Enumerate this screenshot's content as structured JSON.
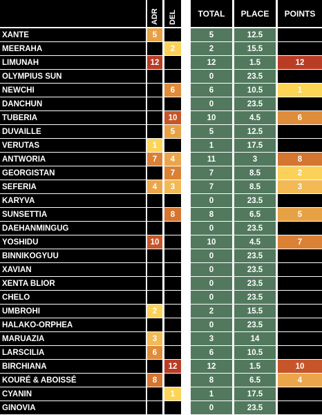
{
  "headers": {
    "adr": "ADR",
    "del": "DEL",
    "total": "TOTAL",
    "place": "PLACE",
    "points": "POINTS"
  },
  "colors": {
    "green": "#52795e",
    "black": "#000000",
    "v1": "#fcd557",
    "v2": "#fbd15a",
    "v3": "#f2b955",
    "v4": "#eba64b",
    "v5": "#e7a145",
    "v6": "#df8c3b",
    "v7": "#da8135",
    "v8": "#d47531",
    "v10": "#c6552a",
    "v12": "#b93c24"
  },
  "rows": [
    {
      "name": "XANTE",
      "adr": "5",
      "del": "",
      "total": "5",
      "place": "12.5",
      "points": ""
    },
    {
      "name": "MEERAHA",
      "adr": "",
      "del": "2",
      "total": "2",
      "place": "15.5",
      "points": ""
    },
    {
      "name": "LIMUNAH",
      "adr": "12",
      "del": "",
      "total": "12",
      "place": "1.5",
      "points": "12"
    },
    {
      "name": "OLYMPIUS SUN",
      "adr": "",
      "del": "",
      "total": "0",
      "place": "23.5",
      "points": ""
    },
    {
      "name": "NEWCHI",
      "adr": "",
      "del": "6",
      "total": "6",
      "place": "10.5",
      "points": "1"
    },
    {
      "name": "DANCHUN",
      "adr": "",
      "del": "",
      "total": "0",
      "place": "23.5",
      "points": ""
    },
    {
      "name": "TUBERIA",
      "adr": "",
      "del": "10",
      "total": "10",
      "place": "4.5",
      "points": "6"
    },
    {
      "name": "DUVAILLE",
      "adr": "",
      "del": "5",
      "total": "5",
      "place": "12.5",
      "points": ""
    },
    {
      "name": "VERUTAS",
      "adr": "1",
      "del": "",
      "total": "1",
      "place": "17.5",
      "points": ""
    },
    {
      "name": "ANTWORIA",
      "adr": "7",
      "del": "4",
      "total": "11",
      "place": "3",
      "points": "8"
    },
    {
      "name": "GEORGISTAN",
      "adr": "",
      "del": "7",
      "total": "7",
      "place": "8.5",
      "points": "2"
    },
    {
      "name": "SEFERIA",
      "adr": "4",
      "del": "3",
      "total": "7",
      "place": "8.5",
      "points": "3"
    },
    {
      "name": "KARYVA",
      "adr": "",
      "del": "",
      "total": "0",
      "place": "23.5",
      "points": ""
    },
    {
      "name": "SUNSETTIA",
      "adr": "",
      "del": "8",
      "total": "8",
      "place": "6.5",
      "points": "5"
    },
    {
      "name": "DAEHANMINGUG",
      "adr": "",
      "del": "",
      "total": "0",
      "place": "23.5",
      "points": ""
    },
    {
      "name": "YOSHIDU",
      "adr": "10",
      "del": "",
      "total": "10",
      "place": "4.5",
      "points": "7"
    },
    {
      "name": "BINNIKOGYUU",
      "adr": "",
      "del": "",
      "total": "0",
      "place": "23.5",
      "points": ""
    },
    {
      "name": "XAVIAN",
      "adr": "",
      "del": "",
      "total": "0",
      "place": "23.5",
      "points": ""
    },
    {
      "name": "XENTA BLIOR",
      "adr": "",
      "del": "",
      "total": "0",
      "place": "23.5",
      "points": ""
    },
    {
      "name": "CHELO",
      "adr": "",
      "del": "",
      "total": "0",
      "place": "23.5",
      "points": ""
    },
    {
      "name": "UMBROHI",
      "adr": "2",
      "del": "",
      "total": "2",
      "place": "15.5",
      "points": ""
    },
    {
      "name": "HALAKO-ORPHEA",
      "adr": "",
      "del": "",
      "total": "0",
      "place": "23.5",
      "points": ""
    },
    {
      "name": "MARUAZIA",
      "adr": "3",
      "del": "",
      "total": "3",
      "place": "14",
      "points": ""
    },
    {
      "name": "LARSCILIA",
      "adr": "6",
      "del": "",
      "total": "6",
      "place": "10.5",
      "points": ""
    },
    {
      "name": "BIRCHIANA",
      "adr": "",
      "del": "12",
      "total": "12",
      "place": "1.5",
      "points": "10"
    },
    {
      "name": "KOURÉ & ABOISSÉ",
      "adr": "8",
      "del": "",
      "total": "8",
      "place": "6.5",
      "points": "4"
    },
    {
      "name": "CYANIN",
      "adr": "",
      "del": "1",
      "total": "1",
      "place": "17.5",
      "points": ""
    },
    {
      "name": "GINOVIA",
      "adr": "",
      "del": "",
      "total": "0",
      "place": "23.5",
      "points": ""
    }
  ]
}
